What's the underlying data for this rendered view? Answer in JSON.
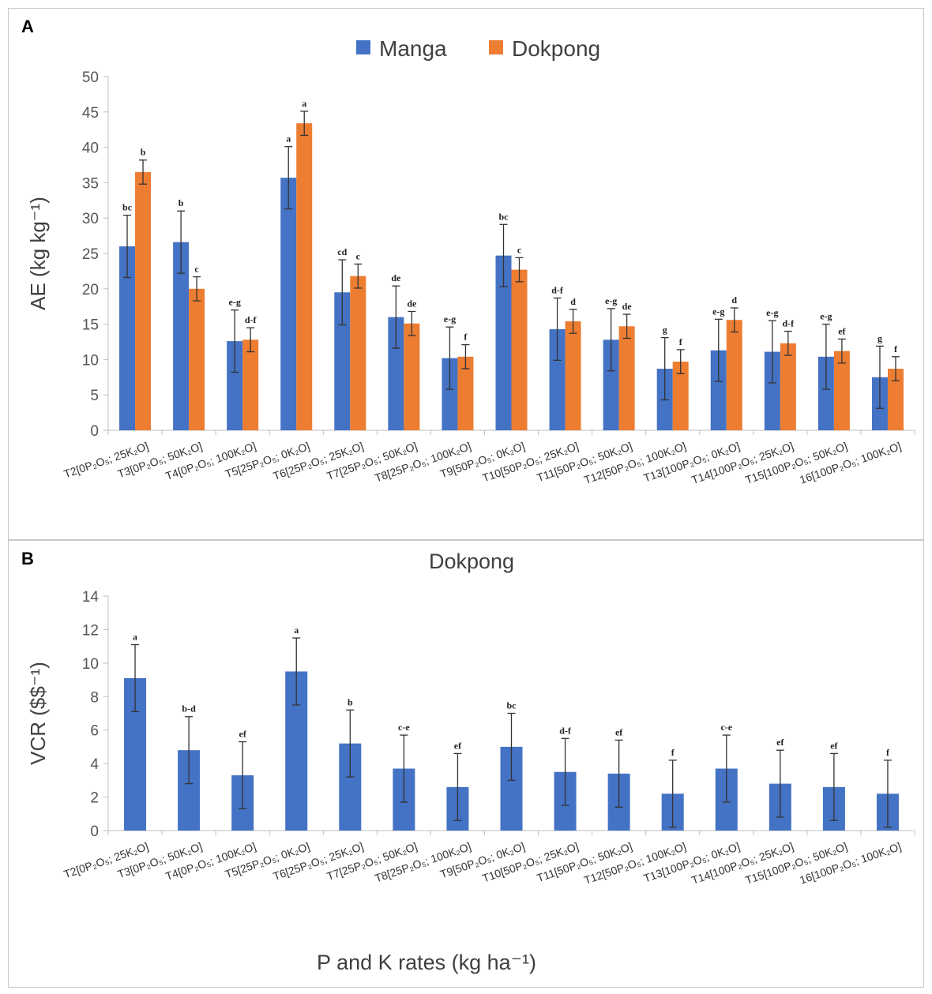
{
  "panel_a_label": "A",
  "panel_b_label": "B",
  "colors": {
    "manga": "#4472C4",
    "dokpong": "#ED7D31",
    "axis": "#BFBFBF",
    "error": "#333333"
  },
  "chart_data": [
    {
      "type": "bar",
      "ylabel": "AE (kg kg⁻¹)",
      "ylim": [
        0,
        50
      ],
      "yticks": [
        "0",
        "5",
        "10",
        "15",
        "20",
        "25",
        "30",
        "35",
        "40",
        "45",
        "50"
      ],
      "legend": [
        "Manga",
        "Dokpong"
      ],
      "legend_position": "top-center",
      "categories": [
        "T2[0P₂O₅; 25K₂O]",
        "T3[0P₂O₅; 50K₂O]",
        "T4[0P₂O₅; 100K₂O]",
        "T5[25P₂O₅; 0K₂O]",
        "T6[25P₂O₅; 25K₂O]",
        "T7[25P₂O₅; 50K₂O]",
        "T8[25P₂O₅; 100K₂O]",
        "T9[50P₂O₅; 0K₂O]",
        "T10[50P₂O₅; 25K₂O]",
        "T11[50P₂O₅; 50K₂O]",
        "T12[50P₂O₅; 100K₂O]",
        "T13[100P₂O₅; 0K₂O]",
        "T14[100P₂O₅; 25K₂O]",
        "T15[100P₂O₅; 50K₂O]",
        "16[100P₂O₅; 100K₂O]"
      ],
      "series": [
        {
          "name": "Manga",
          "values": [
            26.0,
            26.6,
            12.6,
            35.7,
            19.5,
            16.0,
            10.2,
            24.7,
            14.3,
            12.8,
            8.7,
            11.3,
            11.1,
            10.4,
            7.5
          ],
          "errors": [
            4.4,
            4.4,
            4.4,
            4.4,
            4.6,
            4.4,
            4.4,
            4.4,
            4.4,
            4.4,
            4.4,
            4.4,
            4.4,
            4.6,
            4.4
          ],
          "labels": [
            "bc",
            "b",
            "e-g",
            "a",
            "cd",
            "de",
            "e-g",
            "bc",
            "d-f",
            "e-g",
            "g",
            "e-g",
            "e-g",
            "e-g",
            "g"
          ]
        },
        {
          "name": "Dokpong",
          "values": [
            36.5,
            20.0,
            12.8,
            43.4,
            21.8,
            15.1,
            10.4,
            22.7,
            15.4,
            14.7,
            9.7,
            15.6,
            12.3,
            11.2,
            8.7
          ],
          "errors": [
            1.7,
            1.7,
            1.7,
            1.7,
            1.7,
            1.7,
            1.7,
            1.7,
            1.7,
            1.7,
            1.7,
            1.7,
            1.7,
            1.7,
            1.7
          ],
          "labels": [
            "b",
            "c",
            "d-f",
            "a",
            "c",
            "de",
            "f",
            "c",
            "d",
            "de",
            "f",
            "d",
            "d-f",
            "ef",
            "f"
          ]
        }
      ]
    },
    {
      "type": "bar",
      "title": "Dokpong",
      "ylabel": "VCR ($$⁻¹)",
      "xlabel": "P and K rates (kg ha⁻¹)",
      "ylim": [
        0,
        14
      ],
      "yticks": [
        "0",
        "2",
        "4",
        "6",
        "8",
        "10",
        "12",
        "14"
      ],
      "categories": [
        "T2[0P₂O₅; 25K₂O]",
        "T3[0P₂O₅; 50K₂O]",
        "T4[0P₂O₅; 100K₂O]",
        "T5[25P₂O₅; 0K₂O]",
        "T6[25P₂O₅; 25K₂O]",
        "T7[25P₂O₅; 50K₂O]",
        "T8[25P₂O₅; 100K₂O]",
        "T9[50P₂O₅; 0K₂O]",
        "T10[50P₂O₅; 25K₂O]",
        "T11[50P₂O₅; 50K₂O]",
        "T12[50P₂O₅; 100K₂O]",
        "T13[100P₂O₅; 0K₂O]",
        "T14[100P₂O₅; 25K₂O]",
        "T15[100P₂O₅; 50K₂O]",
        "16[100P₂O₅; 100K₂O]"
      ],
      "series": [
        {
          "name": "Dokpong",
          "values": [
            9.1,
            4.8,
            3.3,
            9.5,
            5.2,
            3.7,
            2.6,
            5.0,
            3.5,
            3.4,
            2.2,
            3.7,
            2.8,
            2.6,
            2.2
          ],
          "errors": [
            2.0,
            2.0,
            2.0,
            2.0,
            2.0,
            2.0,
            2.0,
            2.0,
            2.0,
            2.0,
            2.0,
            2.0,
            2.0,
            2.0,
            2.0
          ],
          "labels": [
            "a",
            "b-d",
            "ef",
            "a",
            "b",
            "c-e",
            "ef",
            "bc",
            "d-f",
            "ef",
            "f",
            "c-e",
            "ef",
            "ef",
            "f"
          ]
        }
      ]
    }
  ]
}
